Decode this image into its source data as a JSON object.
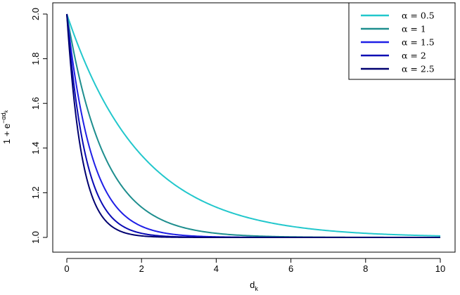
{
  "chart_data": {
    "type": "line",
    "function": "1 + exp(-alpha * d_k)",
    "xlabel": {
      "base": "d",
      "sub": "k"
    },
    "ylabel": {
      "base": "1 + e",
      "sup": "−αd",
      "supsub": "k"
    },
    "xlim": [
      0,
      10
    ],
    "ylim": [
      1.0,
      2.0
    ],
    "xticks": [
      0,
      2,
      4,
      6,
      8,
      10
    ],
    "yticks": [
      1.0,
      1.2,
      1.4,
      1.6,
      1.8,
      2.0
    ],
    "ytick_labels": [
      "1.0",
      "1.2",
      "1.4",
      "1.6",
      "1.8",
      "2.0"
    ],
    "grid": false,
    "legend_position": "top-right",
    "series": [
      {
        "name": "α = 0.5",
        "alpha": 0.5,
        "color": "#22c7cc",
        "x": [
          0,
          1,
          2,
          3,
          4,
          6,
          8,
          10
        ],
        "y": [
          2.0,
          1.607,
          1.368,
          1.223,
          1.135,
          1.05,
          1.018,
          1.007
        ]
      },
      {
        "name": "α = 1",
        "alpha": 1.0,
        "color": "#1e8e8e",
        "x": [
          0,
          1,
          2,
          3,
          4,
          6,
          8,
          10
        ],
        "y": [
          2.0,
          1.368,
          1.135,
          1.05,
          1.018,
          1.002,
          1.0,
          1.0
        ]
      },
      {
        "name": "α = 1.5",
        "alpha": 1.5,
        "color": "#1f1fe6",
        "x": [
          0,
          1,
          2,
          3,
          4,
          6,
          8,
          10
        ],
        "y": [
          2.0,
          1.223,
          1.05,
          1.011,
          1.002,
          1.0,
          1.0,
          1.0
        ]
      },
      {
        "name": "α = 2",
        "alpha": 2.0,
        "color": "#0a0ab4",
        "x": [
          0,
          1,
          2,
          3,
          4,
          6,
          8,
          10
        ],
        "y": [
          2.0,
          1.135,
          1.018,
          1.002,
          1.0,
          1.0,
          1.0,
          1.0
        ]
      },
      {
        "name": "α = 2.5",
        "alpha": 2.5,
        "color": "#000070",
        "x": [
          0,
          1,
          2,
          3,
          4,
          6,
          8,
          10
        ],
        "y": [
          2.0,
          1.082,
          1.007,
          1.001,
          1.0,
          1.0,
          1.0,
          1.0
        ]
      }
    ]
  }
}
